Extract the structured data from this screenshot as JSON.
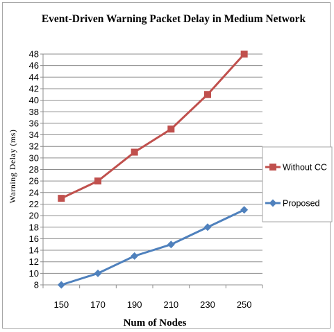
{
  "chart_data": {
    "type": "line",
    "title": "Event-Driven Warning Packet Delay in Medium Network",
    "xlabel": "Num of Nodes",
    "ylabel": "Warning Delay (ms)",
    "categories": [
      "150",
      "170",
      "190",
      "210",
      "230",
      "250"
    ],
    "y_ticks": [
      "8",
      "10",
      "12",
      "14",
      "16",
      "18",
      "20",
      "22",
      "24",
      "26",
      "28",
      "30",
      "32",
      "34",
      "36",
      "38",
      "40",
      "42",
      "44",
      "46",
      "48"
    ],
    "ylim": [
      8,
      48
    ],
    "grid": true,
    "legend_position": "right",
    "series": [
      {
        "name": "Without CC",
        "color": "#c0504d",
        "marker": "square",
        "values": [
          23,
          26,
          31,
          35,
          41,
          48
        ]
      },
      {
        "name": "Proposed",
        "color": "#4f81bd",
        "marker": "diamond",
        "values": [
          8,
          10,
          13,
          15,
          18,
          21
        ]
      }
    ]
  }
}
